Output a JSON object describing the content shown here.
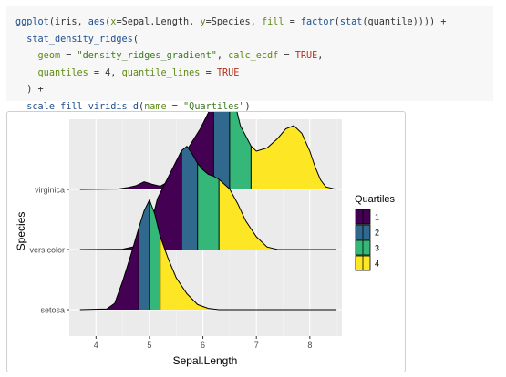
{
  "code": {
    "lines": [
      [
        [
          "tk-fn",
          "ggplot"
        ],
        [
          "tk-op",
          "(iris, "
        ],
        [
          "tk-fn",
          "aes"
        ],
        [
          "tk-op",
          "("
        ],
        [
          "tk-arg",
          "x"
        ],
        [
          "tk-op",
          "=Sepal.Length, "
        ],
        [
          "tk-arg",
          "y"
        ],
        [
          "tk-op",
          "=Species, "
        ],
        [
          "tk-arg",
          "fill"
        ],
        [
          "tk-op",
          " = "
        ],
        [
          "tk-fn",
          "factor"
        ],
        [
          "tk-op",
          "("
        ],
        [
          "tk-fn",
          "stat"
        ],
        [
          "tk-op",
          "(quantile)))) +"
        ]
      ],
      [
        [
          "tk-op",
          "  "
        ],
        [
          "tk-fn",
          "stat_density_ridges"
        ],
        [
          "tk-op",
          "("
        ]
      ],
      [
        [
          "tk-op",
          "    "
        ],
        [
          "tk-arg",
          "geom"
        ],
        [
          "tk-op",
          " = "
        ],
        [
          "tk-str",
          "\"density_ridges_gradient\""
        ],
        [
          "tk-op",
          ", "
        ],
        [
          "tk-arg",
          "calc_ecdf"
        ],
        [
          "tk-op",
          " = "
        ],
        [
          "tk-kw",
          "TRUE"
        ],
        [
          "tk-op",
          ","
        ]
      ],
      [
        [
          "tk-op",
          "    "
        ],
        [
          "tk-arg",
          "quantiles"
        ],
        [
          "tk-op",
          " = 4, "
        ],
        [
          "tk-arg",
          "quantile_lines"
        ],
        [
          "tk-op",
          " = "
        ],
        [
          "tk-kw",
          "TRUE"
        ]
      ],
      [
        [
          "tk-op",
          "  ) +"
        ]
      ],
      [
        [
          "tk-op",
          "  "
        ],
        [
          "tk-fn",
          "scale_fill_viridis_d"
        ],
        [
          "tk-op",
          "("
        ],
        [
          "tk-arg",
          "name"
        ],
        [
          "tk-op",
          " = "
        ],
        [
          "tk-str",
          "\"Quartiles\""
        ],
        [
          "tk-op",
          ")"
        ]
      ]
    ]
  },
  "chart_data": {
    "type": "area",
    "subtype": "density-ridges-gradient",
    "title": "",
    "xlabel": "Sepal.Length",
    "ylabel": "Species",
    "xlim": [
      3.5,
      8.6
    ],
    "xticks": [
      4,
      5,
      6,
      7,
      8
    ],
    "panel_background": "#ebebeb",
    "grid": true,
    "legend": {
      "title": "Quartiles",
      "position": "right",
      "entries": [
        {
          "label": "1",
          "color": "#440154"
        },
        {
          "label": "2",
          "color": "#31688E"
        },
        {
          "label": "3",
          "color": "#35B779"
        },
        {
          "label": "4",
          "color": "#FDE725"
        }
      ]
    },
    "categories": [
      "setosa",
      "versicolor",
      "virginica"
    ],
    "series": [
      {
        "name": "setosa",
        "quartiles": [
          4.8,
          5.0,
          5.2
        ],
        "density_points": [
          [
            3.7,
            0
          ],
          [
            4.2,
            0.01
          ],
          [
            4.35,
            0.1
          ],
          [
            4.5,
            0.45
          ],
          [
            4.65,
            0.85
          ],
          [
            4.8,
            1.28
          ],
          [
            4.9,
            1.55
          ],
          [
            5.0,
            1.72
          ],
          [
            5.1,
            1.5
          ],
          [
            5.2,
            1.15
          ],
          [
            5.35,
            0.8
          ],
          [
            5.5,
            0.5
          ],
          [
            5.7,
            0.25
          ],
          [
            5.9,
            0.08
          ],
          [
            6.1,
            0.02
          ],
          [
            6.3,
            0
          ],
          [
            8.5,
            0
          ]
        ]
      },
      {
        "name": "versicolor",
        "quartiles": [
          5.6,
          5.9,
          6.3
        ],
        "density_points": [
          [
            3.7,
            0
          ],
          [
            4.5,
            0.005
          ],
          [
            4.8,
            0.06
          ],
          [
            5.0,
            0.3
          ],
          [
            5.15,
            0.8
          ],
          [
            5.3,
            1.05
          ],
          [
            5.45,
            1.3
          ],
          [
            5.6,
            1.55
          ],
          [
            5.7,
            1.62
          ],
          [
            5.8,
            1.5
          ],
          [
            5.9,
            1.35
          ],
          [
            6.0,
            1.25
          ],
          [
            6.1,
            1.18
          ],
          [
            6.2,
            1.15
          ],
          [
            6.3,
            1.1
          ],
          [
            6.5,
            0.95
          ],
          [
            6.65,
            0.72
          ],
          [
            6.8,
            0.45
          ],
          [
            7.0,
            0.2
          ],
          [
            7.2,
            0.04
          ],
          [
            7.4,
            0
          ],
          [
            8.5,
            0
          ]
        ]
      },
      {
        "name": "virginica",
        "quartiles": [
          6.2,
          6.5,
          6.9
        ],
        "density_points": [
          [
            3.7,
            0
          ],
          [
            4.4,
            0.005
          ],
          [
            4.6,
            0.03
          ],
          [
            4.75,
            0.06
          ],
          [
            4.9,
            0.12
          ],
          [
            5.05,
            0.08
          ],
          [
            5.2,
            0.05
          ],
          [
            5.35,
            0.12
          ],
          [
            5.5,
            0.35
          ],
          [
            5.65,
            0.55
          ],
          [
            5.8,
            0.75
          ],
          [
            5.95,
            0.95
          ],
          [
            6.1,
            1.2
          ],
          [
            6.2,
            1.4
          ],
          [
            6.3,
            1.75
          ],
          [
            6.4,
            1.85
          ],
          [
            6.5,
            1.72
          ],
          [
            6.6,
            1.35
          ],
          [
            6.7,
            1.0
          ],
          [
            6.9,
            0.68
          ],
          [
            7.0,
            0.6
          ],
          [
            7.2,
            0.65
          ],
          [
            7.4,
            0.8
          ],
          [
            7.55,
            0.95
          ],
          [
            7.7,
            1.0
          ],
          [
            7.85,
            0.88
          ],
          [
            8.0,
            0.6
          ],
          [
            8.1,
            0.35
          ],
          [
            8.2,
            0.15
          ],
          [
            8.3,
            0.04
          ],
          [
            8.5,
            0
          ]
        ]
      }
    ]
  }
}
